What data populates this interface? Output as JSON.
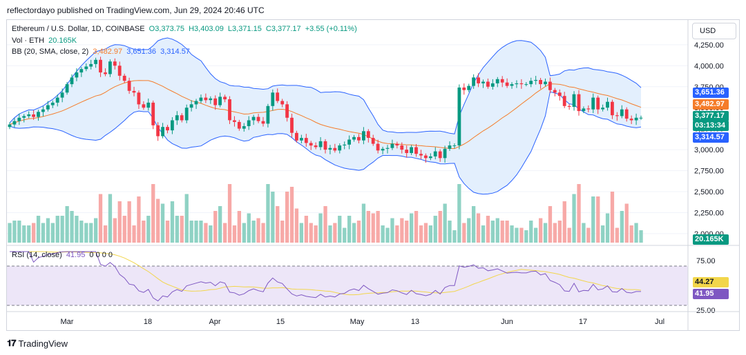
{
  "header": {
    "text": "reflectordayo published on TradingView.com, Jun 29, 2024 20:46 UTC"
  },
  "legend": {
    "symbol": "Ethereum / U.S. Dollar, 1D, COINBASE",
    "open": "O3,373.75",
    "high": "H3,403.09",
    "low": "L3,371.15",
    "close": "C3,377.17",
    "change": "+3.55 (+0.11%)",
    "vol_label": "Vol · ETH",
    "vol_value": "20.165K",
    "bb_label": "BB (20, SMA, close, 2)",
    "bb_basis": "3,482.97",
    "bb_upper": "3,651.36",
    "bb_lower": "3,314.57",
    "rsi_label": "RSI (14, close)",
    "rsi_value": "41.95",
    "rsi_zeros": "0  0  0  0"
  },
  "currency_button": "USD",
  "badges": {
    "upper": "3,651.36",
    "basis": "3,482.97",
    "price": "3,377.17",
    "countdown": "03:13:34",
    "lower": "3,314.57",
    "volume": "20.165K",
    "rsi_ma": "44.27",
    "rsi": "41.95"
  },
  "footer": {
    "brand": "TradingView"
  },
  "colors": {
    "up": "#089981",
    "down": "#f23645",
    "up_vol": "#8fd2c4",
    "down_vol": "#f7a9a7",
    "bb_band": "#2962ff",
    "bb_fill": "#e3effd",
    "bb_basis": "#f57c2a",
    "rsi_line": "#7e57c2",
    "rsi_ma": "#f2d64b",
    "rsi_bg": "#ede6f8"
  },
  "chart_data": [
    {
      "type": "candlestick",
      "title": "Ethereum / U.S. Dollar, 1D, COINBASE",
      "x_ticks": [
        "Mar",
        "18",
        "Apr",
        "15",
        "May",
        "13",
        "Jun",
        "17",
        "Jul"
      ],
      "y_ticks": [
        "2,000.00",
        "2,250.00",
        "2,500.00",
        "2,750.00",
        "3,000.00",
        "3,250.00",
        "3,500.00",
        "3,750.00",
        "4,000.00",
        "4,250.00"
      ],
      "ylim": [
        1950,
        4290
      ],
      "close_series": [
        3300,
        3340,
        3380,
        3400,
        3420,
        3390,
        3450,
        3480,
        3530,
        3560,
        3620,
        3680,
        3780,
        3860,
        3920,
        3960,
        3990,
        4020,
        4070,
        3920,
        3900,
        4050,
        4000,
        3880,
        3820,
        3700,
        3680,
        3540,
        3500,
        3560,
        3290,
        3160,
        3270,
        3230,
        3350,
        3410,
        3350,
        3500,
        3540,
        3580,
        3620,
        3590,
        3610,
        3530,
        3630,
        3600,
        3350,
        3330,
        3250,
        3280,
        3350,
        3390,
        3340,
        3310,
        3520,
        3680,
        3580,
        3540,
        3380,
        3200,
        3110,
        3140,
        3080,
        3050,
        3030,
        3100,
        3000,
        3020,
        2990,
        3050,
        3060,
        3120,
        3150,
        3110,
        3220,
        3140,
        3070,
        2990,
        3010,
        3020,
        3070,
        3050,
        3000,
        2960,
        3030,
        2950,
        2930,
        2900,
        2920,
        2980,
        2900,
        3010,
        3050,
        3050,
        3740,
        3710,
        3760,
        3860,
        3790,
        3810,
        3750,
        3790,
        3840,
        3800,
        3760,
        3780,
        3790,
        3780,
        3780,
        3820,
        3830,
        3780,
        3810,
        3710,
        3680,
        3640,
        3520,
        3510,
        3660,
        3460,
        3490,
        3480,
        3620,
        3480,
        3500,
        3570,
        3410,
        3400,
        3480,
        3370,
        3350,
        3380,
        3380
      ]
    },
    {
      "type": "bar",
      "name": "Vol · ETH",
      "last_value": "20.165K"
    },
    {
      "type": "line",
      "name": "RSI (14, close)",
      "y_ticks": [
        "25.00",
        "75.00"
      ],
      "ylim": [
        25,
        75
      ],
      "last_value": 41.95,
      "ma_last_value": 44.27
    }
  ]
}
